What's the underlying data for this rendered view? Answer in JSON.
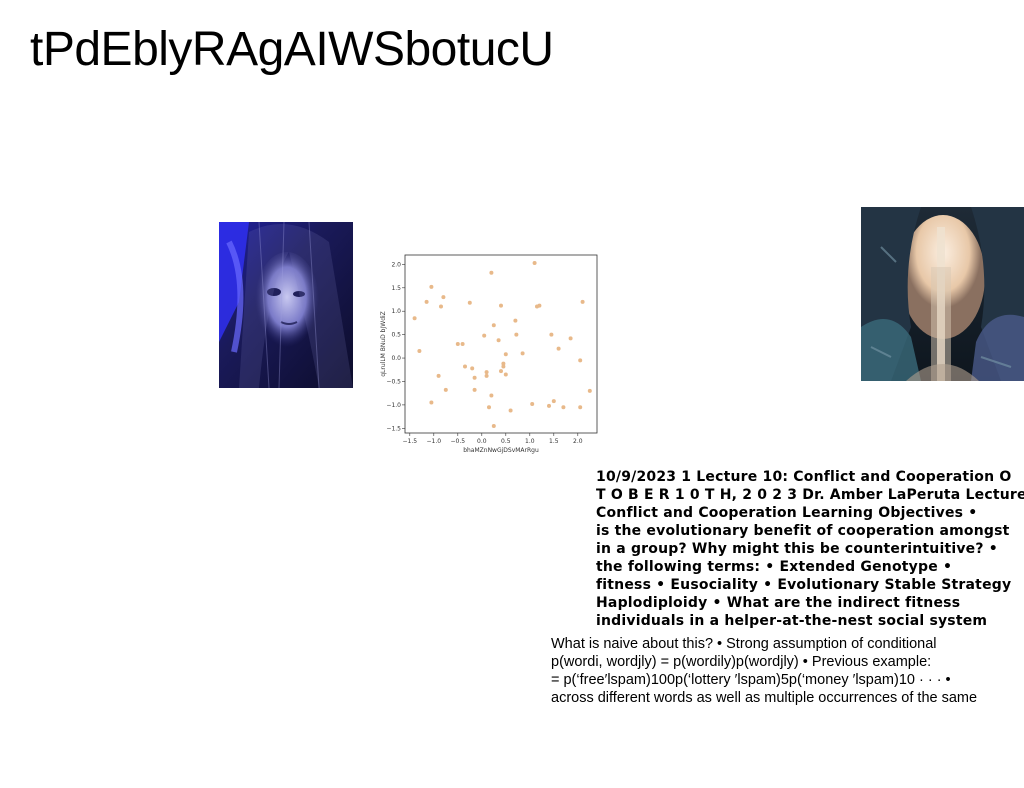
{
  "title": "tPdEblyRAgAIWSbotucU",
  "photo_left": {
    "icon": "veiled-face-photo",
    "colors": {
      "dark": "#14143a",
      "blue": "#3a3adc",
      "pale": "#9b9be0"
    }
  },
  "photo_right": {
    "icon": "cave-waterfall-photo",
    "colors": {
      "sky": "#f2dcc8",
      "water": "#e8d8c4",
      "rock": "#2a3a4a",
      "teal": "#3a6a7a"
    }
  },
  "chart_data": {
    "type": "scatter",
    "xlabel": "bhaMZnNwGjDSvMArRgu",
    "ylabel": "qLrulLM BNuD bJWdiZ",
    "xlim": [
      -1.6,
      2.4
    ],
    "ylim": [
      -1.6,
      2.2
    ],
    "xticks": [
      "−1.5",
      "−1.0",
      "−0.5",
      "0.0",
      "0.5",
      "1.0",
      "1.5",
      "2.0"
    ],
    "xtick_values": [
      -1.5,
      -1.0,
      -0.5,
      0.0,
      0.5,
      1.0,
      1.5,
      2.0
    ],
    "yticks": [
      "−1.5",
      "−1.0",
      "−0.5",
      "0.0",
      "0.5",
      "1.0",
      "1.5",
      "2.0"
    ],
    "ytick_values": [
      -1.5,
      -1.0,
      -0.5,
      0.0,
      0.5,
      1.0,
      1.5,
      2.0
    ],
    "point_color": "#e8b98a",
    "points": [
      [
        -1.4,
        0.85
      ],
      [
        -1.3,
        0.15
      ],
      [
        -1.15,
        1.2
      ],
      [
        -1.05,
        1.52
      ],
      [
        -1.05,
        -0.95
      ],
      [
        -0.85,
        1.1
      ],
      [
        -0.8,
        1.3
      ],
      [
        -0.9,
        -0.38
      ],
      [
        -0.75,
        -0.68
      ],
      [
        -0.5,
        0.3
      ],
      [
        -0.4,
        0.3
      ],
      [
        -0.35,
        -0.18
      ],
      [
        -0.25,
        1.18
      ],
      [
        -0.2,
        -0.22
      ],
      [
        -0.15,
        -0.42
      ],
      [
        -0.15,
        -0.68
      ],
      [
        0.05,
        0.48
      ],
      [
        0.1,
        -0.3
      ],
      [
        0.1,
        -0.38
      ],
      [
        0.15,
        -1.05
      ],
      [
        0.2,
        -0.8
      ],
      [
        0.2,
        1.82
      ],
      [
        0.25,
        0.7
      ],
      [
        0.25,
        -1.45
      ],
      [
        0.35,
        0.38
      ],
      [
        0.4,
        -0.28
      ],
      [
        0.4,
        1.12
      ],
      [
        0.45,
        -0.12
      ],
      [
        0.45,
        -0.18
      ],
      [
        0.5,
        0.08
      ],
      [
        0.5,
        -0.35
      ],
      [
        0.6,
        -1.12
      ],
      [
        0.7,
        0.8
      ],
      [
        0.72,
        0.5
      ],
      [
        0.85,
        0.1
      ],
      [
        1.05,
        -0.98
      ],
      [
        1.1,
        2.03
      ],
      [
        1.15,
        1.1
      ],
      [
        1.2,
        1.12
      ],
      [
        1.4,
        -1.02
      ],
      [
        1.45,
        0.5
      ],
      [
        1.5,
        -0.92
      ],
      [
        1.6,
        0.2
      ],
      [
        1.7,
        -1.05
      ],
      [
        1.85,
        0.42
      ],
      [
        2.05,
        -1.05
      ],
      [
        2.05,
        -0.05
      ],
      [
        2.1,
        1.2
      ],
      [
        2.25,
        -0.7
      ]
    ]
  },
  "bold_lines": [
    "10/9/2023 1 Lecture 10: Conflict and Cooperation O",
    "T O B E R 1 0 T H, 2 0 2 3 Dr. Amber LaPeruta Lecture",
    "Conflict and Cooperation Learning Objectives •",
    "is the evolutionary benefit of cooperation amongst",
    "in a group? Why might this be counterintuitive? •",
    "the following terms: • Extended Genotype •",
    "fitness • Eusociality • Evolutionary Stable Strategy",
    "Haplodiploidy • What are the indirect fitness",
    "individuals in a helper-at-the-nest social system"
  ],
  "regular_lines": [
    "What is naive about this? • Strong assumption of conditional",
    "p(wordi, wordjly) = p(wordily)p(wordjly) • Previous example:",
    "= p(‘free′lspam)100p(‘lottery ′lspam)5p(‘money ′lspam)10 · · · •",
    "across different words as well as multiple occurrences of the same"
  ]
}
